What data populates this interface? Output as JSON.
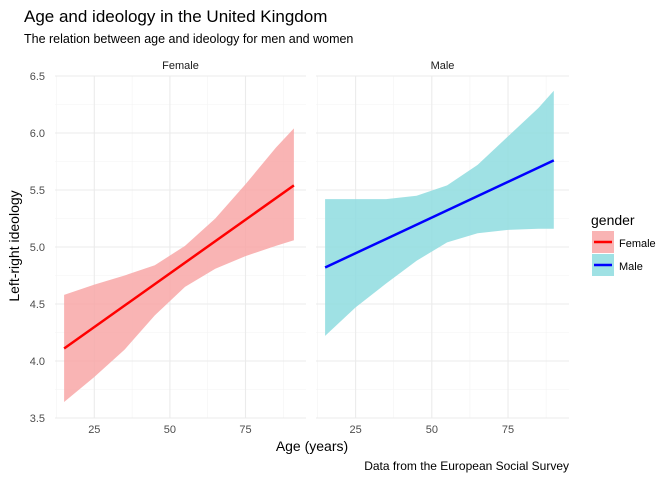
{
  "chart_data": {
    "type": "line",
    "title": "Age and ideology in the United Kingdom",
    "subtitle": "The relation between age and ideology for men and women",
    "xlabel": "Age (years)",
    "ylabel": "Left-right ideology",
    "caption": "Data from the European Social Survey",
    "xlim": [
      12,
      95
    ],
    "ylim": [
      3.5,
      6.5
    ],
    "x_ticks": [
      25,
      50,
      75
    ],
    "y_ticks": [
      3.5,
      4.0,
      4.5,
      5.0,
      5.5,
      6.0,
      6.5
    ],
    "y_tick_labels": [
      "3.5",
      "4.0",
      "4.5",
      "5.0",
      "5.5",
      "6.0",
      "6.5"
    ],
    "grid": true,
    "legend": {
      "title": "gender",
      "position": "right",
      "entries": [
        "Female",
        "Male"
      ]
    },
    "panels": [
      {
        "strip": "Female",
        "series": {
          "name": "Female",
          "line_color": "#ff0000",
          "fill_color": "#f8a7a7",
          "line": [
            [
              15,
              4.11
            ],
            [
              91,
              5.54
            ]
          ],
          "ribbon": [
            [
              15,
              3.64,
              4.58
            ],
            [
              25,
              3.86,
              4.67
            ],
            [
              35,
              4.1,
              4.75
            ],
            [
              45,
              4.4,
              4.84
            ],
            [
              55,
              4.65,
              5.01
            ],
            [
              65,
              4.81,
              5.25
            ],
            [
              75,
              4.92,
              5.55
            ],
            [
              85,
              5.01,
              5.87
            ],
            [
              91,
              5.06,
              6.04
            ]
          ]
        }
      },
      {
        "strip": "Male",
        "series": {
          "name": "Male",
          "line_color": "#0000ff",
          "fill_color": "#8edcdf",
          "line": [
            [
              15,
              4.82
            ],
            [
              90,
              5.76
            ]
          ],
          "ribbon": [
            [
              15,
              4.22,
              5.42
            ],
            [
              25,
              4.47,
              5.42
            ],
            [
              35,
              4.68,
              5.42
            ],
            [
              45,
              4.88,
              5.45
            ],
            [
              55,
              5.04,
              5.54
            ],
            [
              65,
              5.12,
              5.72
            ],
            [
              75,
              5.15,
              5.97
            ],
            [
              85,
              5.16,
              6.22
            ],
            [
              90,
              5.16,
              6.37
            ]
          ]
        }
      }
    ]
  }
}
